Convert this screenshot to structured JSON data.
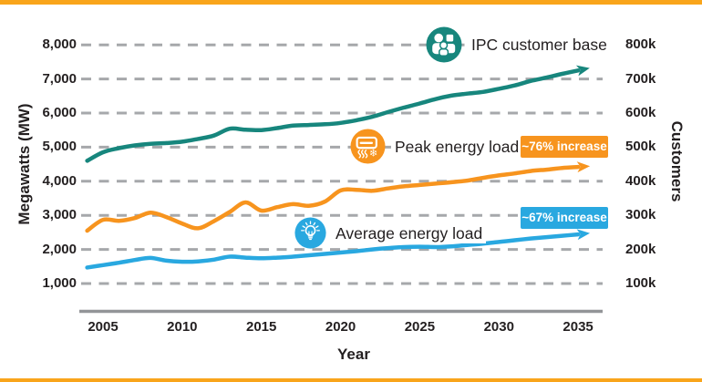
{
  "colors": {
    "teal": "#17867D",
    "orange": "#F7941E",
    "blue": "#29A8E0",
    "border_orange": "#F9A51B",
    "gridline_gray": "#A6A8AB",
    "axis_gray": "#939598",
    "text_dark": "#231F20"
  },
  "chart_data": {
    "type": "line",
    "title": "",
    "grid": "horizontal-dashed",
    "legend_position": "inline-labels-on-plot",
    "x_axis": {
      "title": "Year",
      "tick_labels": [
        "2005",
        "2010",
        "2015",
        "2020",
        "2025",
        "2030",
        "2035"
      ],
      "tick_values": [
        2005,
        2010,
        2015,
        2020,
        2025,
        2030,
        2035
      ],
      "range": [
        2004,
        2035
      ]
    },
    "y_axis_left": {
      "title": "Megawatts (MW)",
      "tick_labels": [
        "8,000",
        "7,000",
        "6,000",
        "5,000",
        "4,000",
        "3,000",
        "2,000",
        "1,000"
      ],
      "tick_values": [
        8000,
        7000,
        6000,
        5000,
        4000,
        3000,
        2000,
        1000
      ],
      "range": [
        1000,
        8000
      ]
    },
    "y_axis_right": {
      "title": "Customers",
      "tick_labels": [
        "800k",
        "700k",
        "600k",
        "500k",
        "400k",
        "300k",
        "200k",
        "100k"
      ],
      "tick_values_thousands": [
        800,
        700,
        600,
        500,
        400,
        300,
        200,
        100
      ],
      "range_thousands": [
        100,
        800
      ]
    },
    "years": [
      2004,
      2005,
      2006,
      2007,
      2008,
      2009,
      2010,
      2011,
      2012,
      2013,
      2014,
      2015,
      2016,
      2017,
      2018,
      2019,
      2020,
      2021,
      2022,
      2023,
      2024,
      2025,
      2026,
      2027,
      2028,
      2029,
      2030,
      2031,
      2032,
      2033,
      2034,
      2035
    ],
    "series": [
      {
        "name": "IPC customer base",
        "icon": "people-icon",
        "axis": "right",
        "unit": "thousand customers",
        "color_key": "teal",
        "annotation": "",
        "values": [
          460,
          485,
          497,
          505,
          510,
          512,
          516,
          524,
          534,
          554,
          551,
          550,
          556,
          563,
          565,
          567,
          571,
          579,
          589,
          603,
          616,
          628,
          641,
          651,
          657,
          662,
          671,
          681,
          694,
          704,
          715,
          725
        ]
      },
      {
        "name": "Peak energy load",
        "icon": "air-conditioner-icon",
        "axis": "left",
        "unit": "MW",
        "color_key": "orange",
        "annotation": "~76% increase",
        "values": [
          2550,
          2870,
          2840,
          2920,
          3080,
          2950,
          2760,
          2620,
          2830,
          3100,
          3380,
          3140,
          3240,
          3330,
          3280,
          3400,
          3730,
          3750,
          3720,
          3790,
          3850,
          3890,
          3930,
          3970,
          4020,
          4100,
          4170,
          4230,
          4300,
          4340,
          4390,
          4420
        ]
      },
      {
        "name": "Average energy load",
        "icon": "lightbulb-icon",
        "axis": "left",
        "unit": "MW",
        "color_key": "blue",
        "annotation": "~67% increase",
        "values": [
          1470,
          1540,
          1610,
          1690,
          1750,
          1670,
          1640,
          1650,
          1700,
          1790,
          1760,
          1740,
          1760,
          1790,
          1830,
          1870,
          1910,
          1950,
          2000,
          2040,
          2070,
          2080,
          2070,
          2090,
          2130,
          2170,
          2220,
          2270,
          2320,
          2360,
          2400,
          2440
        ]
      }
    ]
  }
}
